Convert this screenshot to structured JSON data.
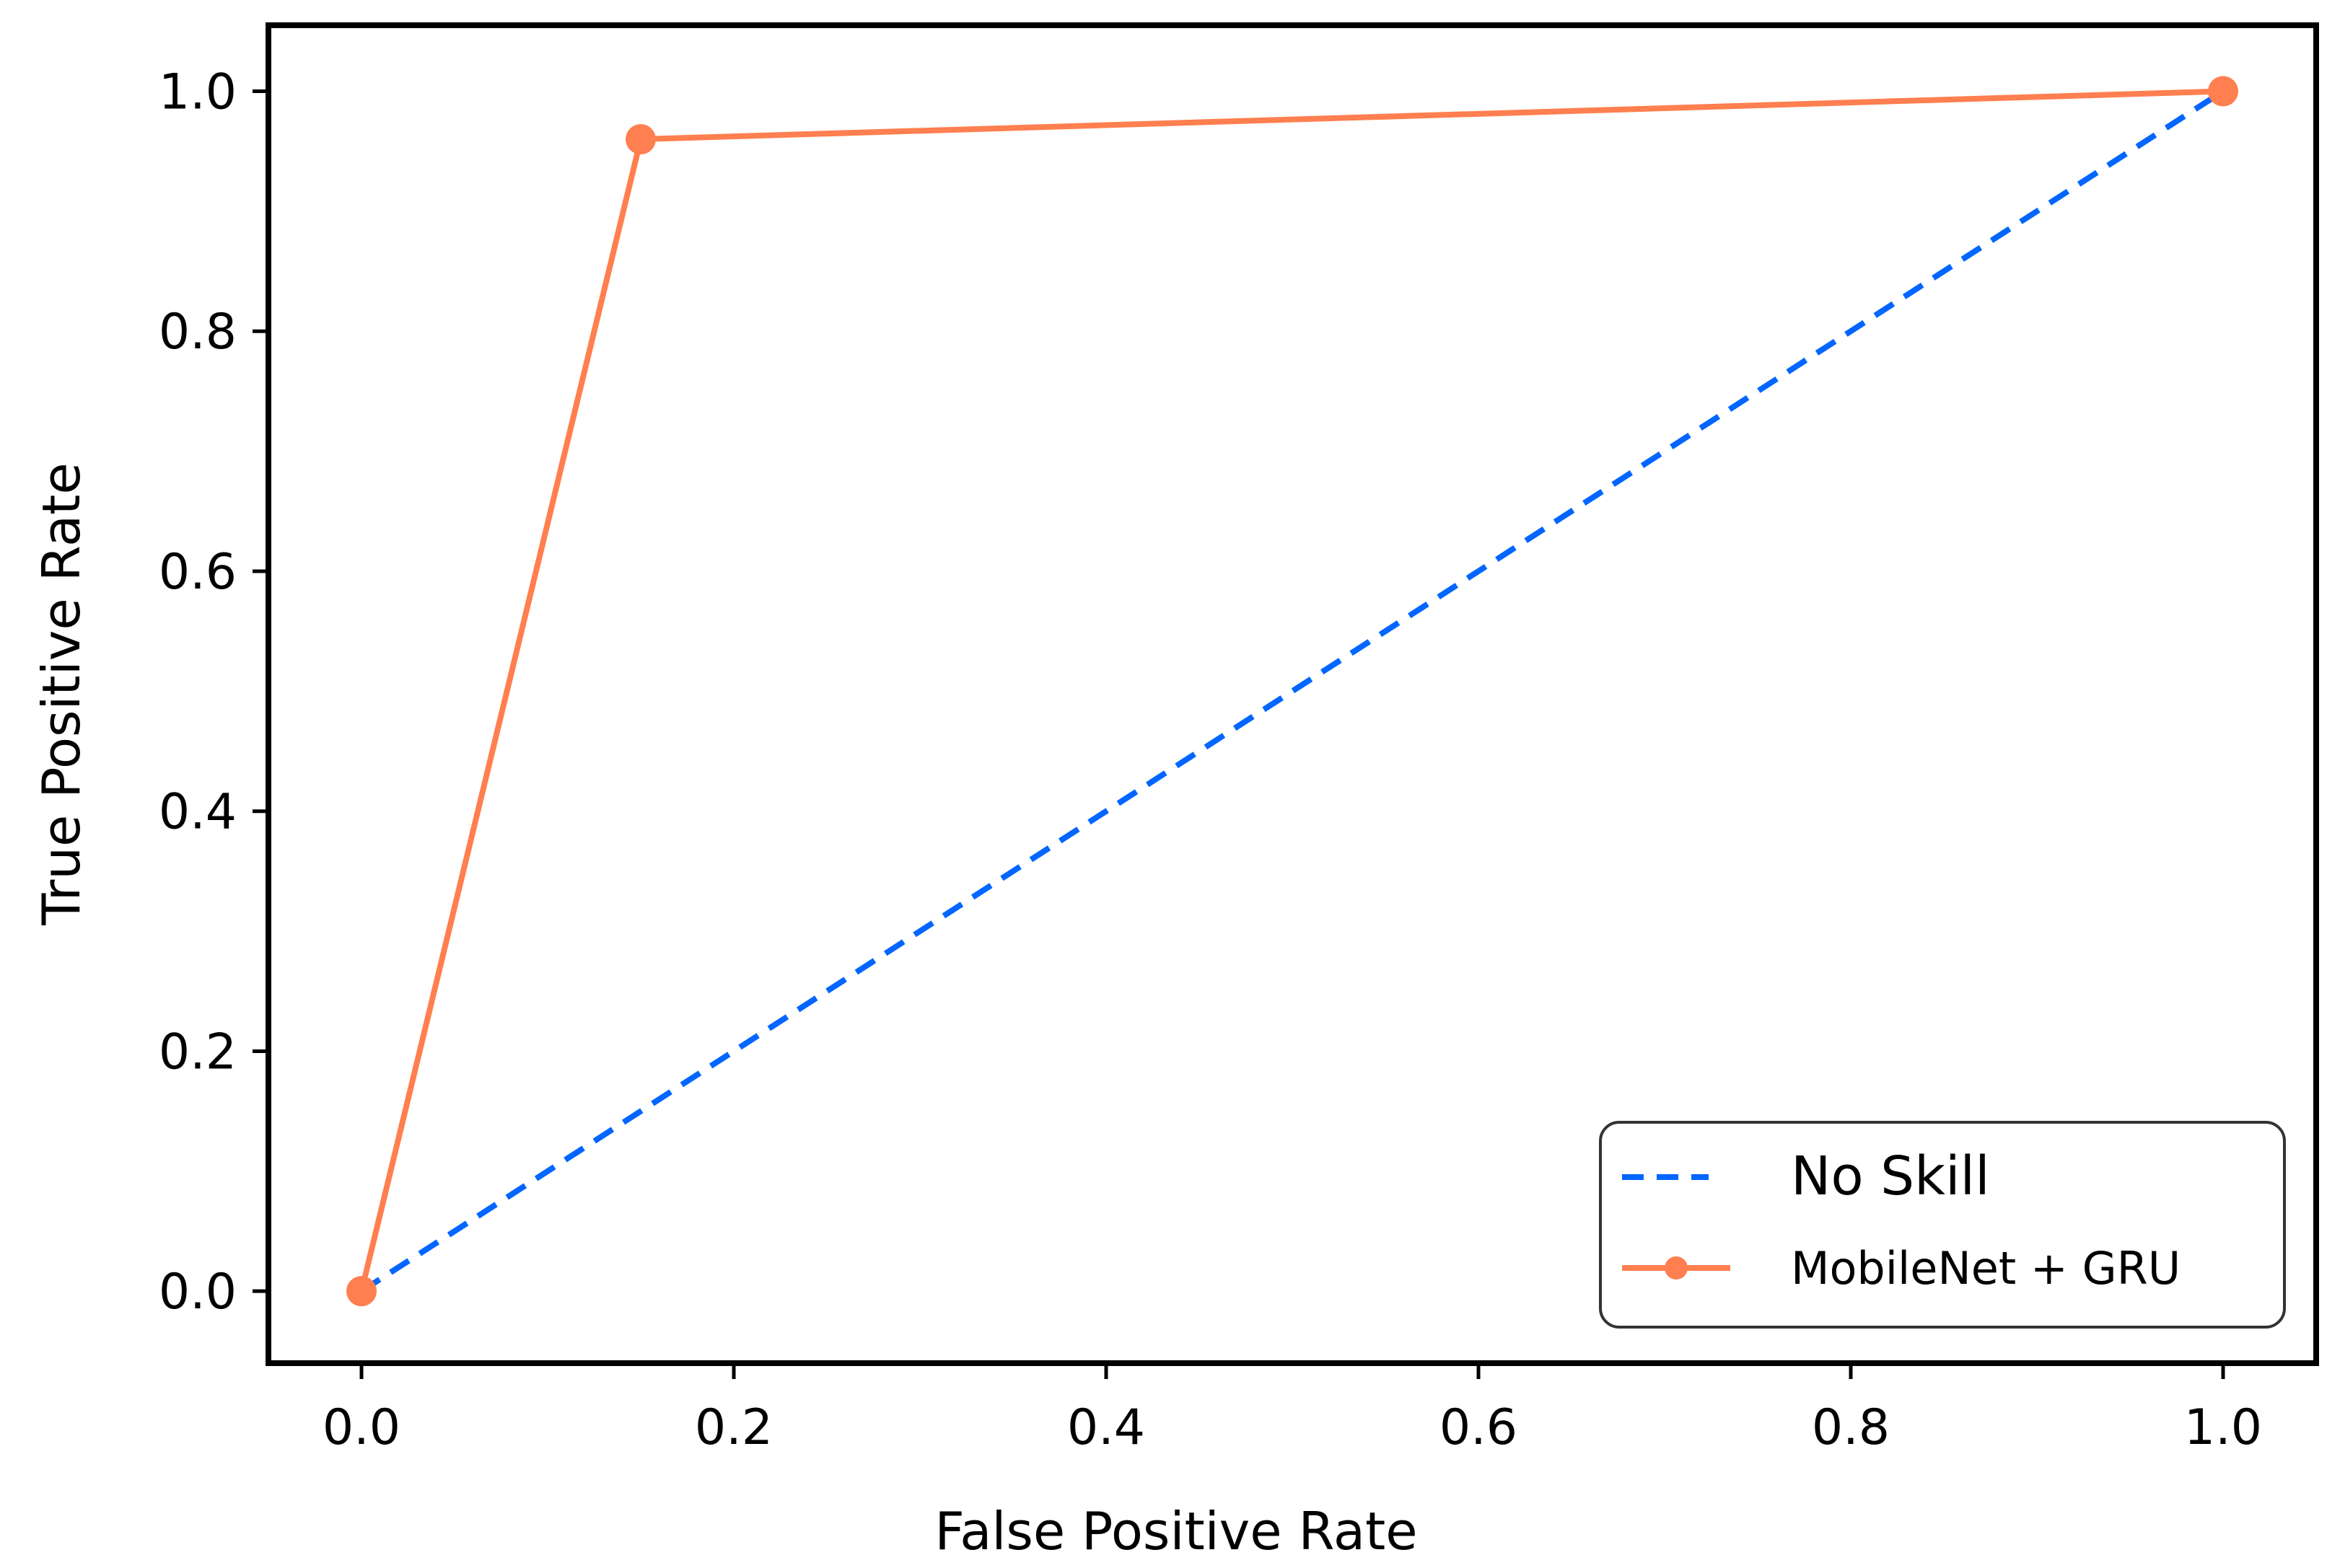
{
  "chart_data": {
    "type": "line",
    "title": "",
    "xlabel": "False Positive Rate",
    "ylabel": "True Positive Rate",
    "xlim": [
      -0.05,
      1.05
    ],
    "ylim": [
      -0.06,
      1.055
    ],
    "xticks": [
      0.0,
      0.2,
      0.4,
      0.6,
      0.8,
      1.0
    ],
    "yticks": [
      0.0,
      0.2,
      0.4,
      0.6,
      0.8,
      1.0
    ],
    "xtick_labels": [
      "0.0",
      "0.2",
      "0.4",
      "0.6",
      "0.8",
      "1.0"
    ],
    "ytick_labels": [
      "0.0",
      "0.2",
      "0.4",
      "0.6",
      "0.8",
      "1.0"
    ],
    "grid": false,
    "legend_position": "lower-right",
    "series": [
      {
        "name": "No Skill",
        "style": "dashed",
        "marker": "none",
        "color": "#0066ff",
        "x": [
          0.0,
          1.0
        ],
        "y": [
          0.0,
          1.0
        ]
      },
      {
        "name": "MobileNet + GRU",
        "style": "solid",
        "marker": "circle",
        "color": "#ff7f50",
        "x": [
          0.0,
          0.15,
          1.0
        ],
        "y": [
          0.0,
          0.96,
          1.0
        ]
      }
    ]
  }
}
